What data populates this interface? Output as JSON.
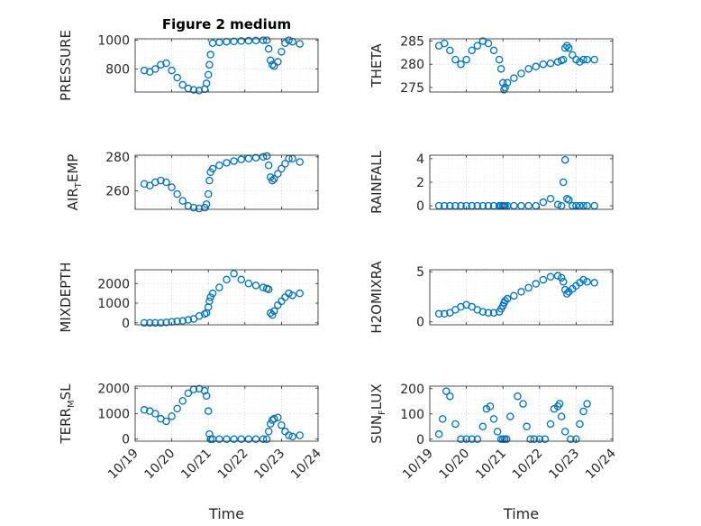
{
  "figure": {
    "title": "Figure 2 medium",
    "colors": {
      "marker": "#0072BD",
      "axis": "#262626"
    }
  },
  "chart_data": [
    {
      "type": "scatter",
      "marker": "circle-open",
      "grid": true,
      "title": "Figure 2 medium",
      "ylabel": [
        "PRESSURE"
      ],
      "ylim": [
        640,
        1010
      ],
      "yticks": [
        800,
        1000
      ],
      "xlim": [
        0,
        5
      ],
      "xticks": [],
      "xlabel": "",
      "series": [
        {
          "x": [
            0.25,
            0.4,
            0.55,
            0.7,
            0.85,
            1.0,
            1.15,
            1.3,
            1.45,
            1.6,
            1.75,
            1.9,
            1.95,
            2.0,
            2.03,
            2.06,
            2.12,
            2.3,
            2.5,
            2.7,
            2.9,
            3.1,
            3.3,
            3.5,
            3.6,
            3.65,
            3.7,
            3.75,
            3.8,
            3.9,
            4.0,
            4.1,
            4.2,
            4.3,
            4.5
          ],
          "y": [
            790,
            780,
            800,
            830,
            840,
            790,
            740,
            690,
            665,
            655,
            650,
            660,
            700,
            760,
            830,
            900,
            980,
            985,
            990,
            992,
            995,
            997,
            998,
            1000,
            1000,
            940,
            860,
            830,
            820,
            850,
            920,
            980,
            1000,
            990,
            975
          ]
        }
      ]
    },
    {
      "type": "scatter",
      "marker": "circle-open",
      "grid": true,
      "title": "",
      "ylabel": [
        "THETA"
      ],
      "ylim": [
        274,
        285.5
      ],
      "yticks": [
        275,
        280,
        285
      ],
      "xlim": [
        0,
        5
      ],
      "xticks": [],
      "xlabel": "",
      "series": [
        {
          "x": [
            0.25,
            0.4,
            0.55,
            0.7,
            0.85,
            1.0,
            1.15,
            1.3,
            1.45,
            1.6,
            1.75,
            1.9,
            1.95,
            2.0,
            2.03,
            2.06,
            2.12,
            2.3,
            2.5,
            2.7,
            2.9,
            3.1,
            3.3,
            3.5,
            3.6,
            3.65,
            3.7,
            3.75,
            3.8,
            3.9,
            4.0,
            4.1,
            4.2,
            4.3,
            4.5
          ],
          "y": [
            284,
            284.5,
            283,
            281,
            280,
            281,
            283,
            284,
            285,
            284.5,
            283,
            281,
            279,
            276,
            274.5,
            275,
            276,
            277,
            278,
            279,
            279.5,
            280,
            280.2,
            280.5,
            280.8,
            281,
            283.5,
            284,
            283.5,
            282,
            281,
            280.5,
            281,
            281,
            281
          ]
        }
      ]
    },
    {
      "type": "scatter",
      "marker": "circle-open",
      "grid": true,
      "title": "",
      "ylabel": [
        "AIR",
        "T",
        "EMP"
      ],
      "ylim": [
        249,
        281
      ],
      "yticks": [
        260,
        280
      ],
      "xlim": [
        0,
        5
      ],
      "xticks": [],
      "xlabel": "",
      "series": [
        {
          "x": [
            0.25,
            0.4,
            0.55,
            0.7,
            0.85,
            1.0,
            1.15,
            1.3,
            1.45,
            1.6,
            1.75,
            1.9,
            1.95,
            2.0,
            2.03,
            2.06,
            2.12,
            2.3,
            2.5,
            2.7,
            2.9,
            3.1,
            3.3,
            3.5,
            3.6,
            3.65,
            3.7,
            3.75,
            3.8,
            3.9,
            4.0,
            4.1,
            4.2,
            4.3,
            4.5
          ],
          "y": [
            264,
            263,
            265,
            266,
            265,
            262,
            258,
            254,
            251,
            250,
            249.5,
            250,
            252,
            258,
            266,
            271,
            273,
            275,
            276.5,
            277.5,
            278.5,
            279,
            279.5,
            280,
            280.5,
            275,
            268,
            266,
            267,
            270,
            273,
            276,
            279,
            279,
            277
          ]
        }
      ]
    },
    {
      "type": "scatter",
      "marker": "circle-open",
      "grid": true,
      "title": "",
      "ylabel": [
        "RAINFALL"
      ],
      "ylim": [
        -0.3,
        4.3
      ],
      "yticks": [
        0,
        2,
        4
      ],
      "xlim": [
        0,
        5
      ],
      "xticks": [],
      "xlabel": "",
      "series": [
        {
          "x": [
            0.25,
            0.4,
            0.55,
            0.7,
            0.85,
            1.0,
            1.15,
            1.3,
            1.45,
            1.6,
            1.75,
            1.9,
            1.95,
            2.0,
            2.03,
            2.06,
            2.12,
            2.3,
            2.5,
            2.7,
            2.9,
            3.1,
            3.3,
            3.5,
            3.6,
            3.65,
            3.7,
            3.75,
            3.8,
            3.9,
            4.0,
            4.1,
            4.2,
            4.3,
            4.5
          ],
          "y": [
            0,
            0,
            0,
            0,
            0,
            0,
            0,
            0,
            0,
            0,
            0,
            0,
            0,
            0,
            0,
            0,
            0,
            0,
            0,
            0,
            0,
            0.3,
            0.6,
            0.1,
            0,
            2.0,
            3.9,
            0.6,
            0.5,
            0,
            0,
            0,
            0,
            0,
            0
          ]
        }
      ]
    },
    {
      "type": "scatter",
      "marker": "circle-open",
      "grid": true,
      "title": "",
      "ylabel": [
        "MIXDEPTH"
      ],
      "ylim": [
        -100,
        2700
      ],
      "yticks": [
        0,
        1000,
        2000
      ],
      "xlim": [
        0,
        5
      ],
      "xticks": [],
      "xlabel": "",
      "series": [
        {
          "x": [
            0.25,
            0.4,
            0.55,
            0.7,
            0.85,
            1.0,
            1.15,
            1.3,
            1.45,
            1.6,
            1.75,
            1.9,
            1.95,
            2.0,
            2.03,
            2.06,
            2.12,
            2.3,
            2.5,
            2.7,
            2.9,
            3.1,
            3.3,
            3.5,
            3.6,
            3.65,
            3.7,
            3.75,
            3.8,
            3.9,
            4.0,
            4.1,
            4.2,
            4.3,
            4.5
          ],
          "y": [
            0,
            0,
            0,
            0,
            20,
            50,
            80,
            100,
            150,
            200,
            350,
            450,
            500,
            800,
            1100,
            1300,
            1500,
            1800,
            2200,
            2500,
            2200,
            2000,
            1900,
            1800,
            1750,
            1700,
            500,
            400,
            600,
            900,
            1100,
            1300,
            1500,
            1400,
            1500
          ]
        }
      ]
    },
    {
      "type": "scatter",
      "marker": "circle-open",
      "grid": true,
      "title": "",
      "ylabel": [
        "H2OMIXRA"
      ],
      "ylim": [
        -0.3,
        5.2
      ],
      "yticks": [
        0,
        5
      ],
      "xlim": [
        0,
        5
      ],
      "xticks": [],
      "xlabel": "",
      "series": [
        {
          "x": [
            0.25,
            0.4,
            0.55,
            0.7,
            0.85,
            1.0,
            1.15,
            1.3,
            1.45,
            1.6,
            1.75,
            1.9,
            1.95,
            2.0,
            2.03,
            2.06,
            2.12,
            2.3,
            2.5,
            2.7,
            2.9,
            3.1,
            3.3,
            3.5,
            3.6,
            3.65,
            3.7,
            3.75,
            3.8,
            3.9,
            4.0,
            4.1,
            4.2,
            4.3,
            4.5
          ],
          "y": [
            0.8,
            0.8,
            0.9,
            1.2,
            1.5,
            1.7,
            1.5,
            1.2,
            1.0,
            0.9,
            0.9,
            1.0,
            1.3,
            1.6,
            1.9,
            2.1,
            2.3,
            2.6,
            3.0,
            3.4,
            3.8,
            4.2,
            4.5,
            4.6,
            4.4,
            4.0,
            3.2,
            2.8,
            3.0,
            3.3,
            3.6,
            3.9,
            4.2,
            4.0,
            3.9
          ]
        }
      ]
    },
    {
      "type": "scatter",
      "marker": "circle-open",
      "grid": true,
      "title": "",
      "ylabel": [
        "TERR",
        "M",
        "SL"
      ],
      "ylim": [
        -80,
        2080
      ],
      "yticks": [
        0,
        1000,
        2000
      ],
      "xlim": [
        0,
        5
      ],
      "xticks": [
        "10/19",
        "10/20",
        "10/21",
        "10/22",
        "10/23",
        "10/24"
      ],
      "xlabel": "Time",
      "series": [
        {
          "x": [
            0.25,
            0.4,
            0.55,
            0.7,
            0.85,
            1.0,
            1.15,
            1.3,
            1.45,
            1.6,
            1.75,
            1.9,
            1.95,
            2.0,
            2.03,
            2.06,
            2.12,
            2.3,
            2.5,
            2.7,
            2.9,
            3.1,
            3.3,
            3.5,
            3.6,
            3.65,
            3.7,
            3.75,
            3.8,
            3.9,
            4.0,
            4.1,
            4.2,
            4.3,
            4.5
          ],
          "y": [
            1150,
            1100,
            1000,
            800,
            700,
            900,
            1200,
            1500,
            1800,
            1950,
            1980,
            1900,
            1700,
            1100,
            200,
            0,
            0,
            0,
            0,
            0,
            0,
            0,
            0,
            0,
            0,
            300,
            600,
            750,
            800,
            850,
            550,
            300,
            150,
            100,
            150
          ]
        }
      ]
    },
    {
      "type": "scatter",
      "marker": "circle-open",
      "grid": true,
      "title": "",
      "ylabel": [
        "SUN",
        "F",
        "LUX"
      ],
      "ylim": [
        -8,
        210
      ],
      "yticks": [
        0,
        100,
        200
      ],
      "xlim": [
        0,
        5
      ],
      "xticks": [
        "10/19",
        "10/20",
        "10/21",
        "10/22",
        "10/23",
        "10/24"
      ],
      "xlabel": "Time",
      "series": [
        {
          "x": [
            0.25,
            0.35,
            0.45,
            0.55,
            0.7,
            0.85,
            1.0,
            1.15,
            1.3,
            1.45,
            1.55,
            1.65,
            1.75,
            1.85,
            1.95,
            2.0,
            2.05,
            2.1,
            2.2,
            2.4,
            2.55,
            2.65,
            2.75,
            2.85,
            3.0,
            3.15,
            3.3,
            3.4,
            3.5,
            3.55,
            3.6,
            3.7,
            3.85,
            4.0,
            4.1,
            4.2,
            4.3
          ],
          "y": [
            20,
            80,
            190,
            170,
            60,
            0,
            0,
            0,
            0,
            50,
            120,
            130,
            80,
            30,
            0,
            0,
            0,
            0,
            90,
            170,
            140,
            50,
            0,
            0,
            0,
            0,
            60,
            120,
            130,
            140,
            90,
            30,
            0,
            0,
            60,
            110,
            140
          ]
        }
      ]
    }
  ]
}
